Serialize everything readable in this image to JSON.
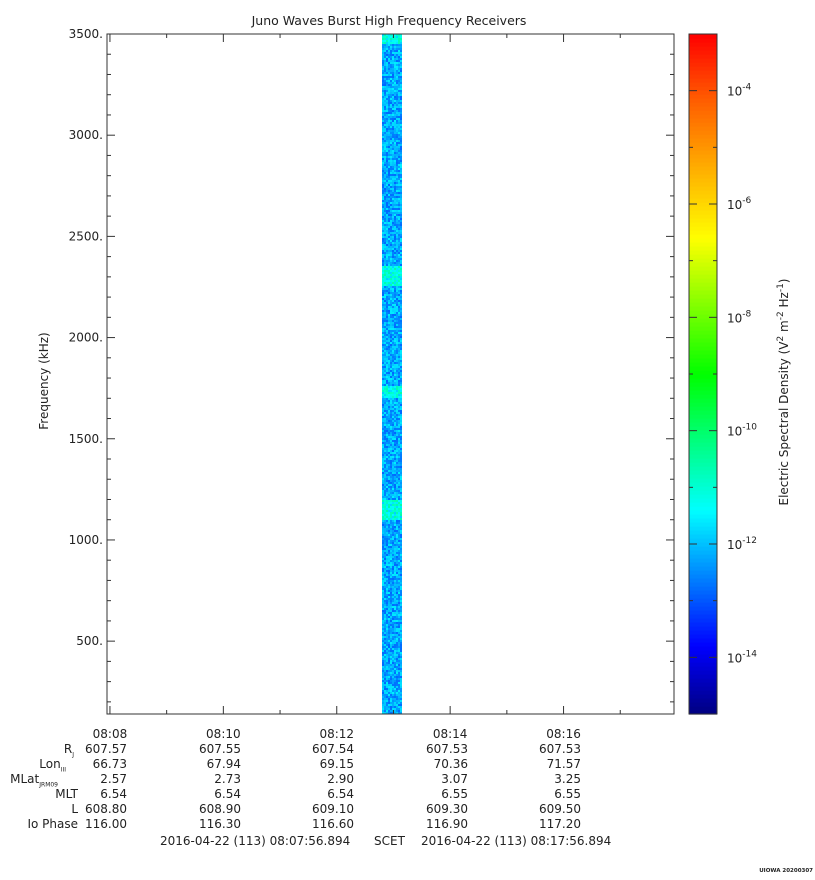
{
  "chart_data": {
    "type": "heatmap",
    "title": "Juno Waves Burst High Frequency Receivers",
    "ylabel": "Frequency (kHz)",
    "ylim": [
      140,
      3500
    ],
    "y_ticks": [
      "3500.",
      "3000.",
      "2500.",
      "2000.",
      "1500.",
      "1000.",
      "500."
    ],
    "y_tick_values": [
      3500,
      3000,
      2500,
      2000,
      1500,
      1000,
      500
    ],
    "x_range": [
      "08:07:56.894",
      "08:17:56.894"
    ],
    "x_ticks": [
      "08:08",
      "08:10",
      "08:12",
      "08:14",
      "08:16"
    ],
    "x_tick_minutes": [
      0.052,
      2.052,
      4.052,
      6.052,
      8.052
    ],
    "burst": {
      "start_min": 4.85,
      "end_min": 5.2,
      "typical_log_value": -12.2,
      "enhanced_bands_khz": [
        [
          3450,
          3500
        ],
        [
          2250,
          2350
        ],
        [
          1700,
          1760
        ],
        [
          1100,
          1200
        ]
      ]
    },
    "colorbar": {
      "label": "Electric Spectral Density (V² m⁻² Hz⁻¹)",
      "label_base": "Electric Spectral Density (V",
      "label_sup1": "2",
      "label_mid1": " m",
      "label_sup2": "-2",
      "label_mid2": " Hz",
      "label_sup3": "-1",
      "label_end": ")",
      "log_min": -15.0,
      "log_max": -3.0,
      "tick_exponents": [
        -4,
        -6,
        -8,
        -10,
        -12,
        -14
      ],
      "tick_base": "10",
      "colors": [
        "#000080",
        "#0000ff",
        "#0080ff",
        "#00ffff",
        "#00ff80",
        "#00ff00",
        "#80ff00",
        "#ffff00",
        "#ffb000",
        "#ff6000",
        "#ff0000"
      ]
    }
  },
  "ephemeris": {
    "rows": [
      {
        "label": "R",
        "sub": "J",
        "values": [
          "607.57",
          "607.55",
          "607.54",
          "607.53",
          "607.53"
        ]
      },
      {
        "label": "Lon",
        "sub": "III",
        "values": [
          "66.73",
          "67.94",
          "69.15",
          "70.36",
          "71.57"
        ]
      },
      {
        "label": "MLat",
        "sub": "JRM09",
        "values": [
          "2.57",
          "2.73",
          "2.90",
          "3.07",
          "3.25"
        ]
      },
      {
        "label": "MLT",
        "sub": "",
        "values": [
          "6.54",
          "6.54",
          "6.54",
          "6.55",
          "6.55"
        ]
      },
      {
        "label": "L",
        "sub": "",
        "values": [
          "608.80",
          "608.90",
          "609.10",
          "609.30",
          "609.50"
        ]
      },
      {
        "label": "Io Phase",
        "sub": "",
        "values": [
          "116.00",
          "116.30",
          "116.60",
          "116.90",
          "117.20"
        ]
      }
    ]
  },
  "footer": {
    "start": "2016-04-22 (113) 08:07:56.894",
    "scet": "SCET",
    "end": "2016-04-22 (113) 08:17:56.894"
  },
  "stamp": "UIOWA 20200307"
}
